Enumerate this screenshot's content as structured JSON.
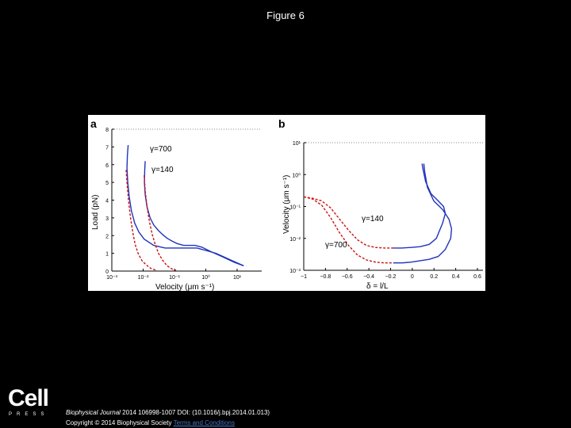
{
  "slide": {
    "title": "Figure 6"
  },
  "logo": {
    "word": "Cell",
    "sub": "PRESS"
  },
  "citation": {
    "journal": "Biophysical Journal",
    "details": " 2014 106998-1007 DOI: (10.1016/j.bpj.2014.01.013)",
    "copyright": "Copyright © 2014 Biophysical Society",
    "terms_link": "Terms and Conditions"
  },
  "colors": {
    "curve": "#2233bb",
    "dashed": "#cc1111",
    "axis": "#000000",
    "background": "#000000"
  },
  "chart_data": [
    {
      "panel_label": "a",
      "type": "line",
      "xscale": "log",
      "xlim": [
        0.001,
        100
      ],
      "ylim": [
        0,
        8
      ],
      "xlabel": "Velocity (μm s⁻¹)",
      "ylabel": "Load (pN)",
      "xticks": [
        "10⁻³",
        "10⁻²",
        "10⁻¹",
        "10⁰",
        "10¹"
      ],
      "yticks": [
        "0",
        "1",
        "2",
        "3",
        "4",
        "5",
        "6",
        "7",
        "8"
      ],
      "annotations": [
        "γ=700",
        "γ=140"
      ],
      "series": [
        {
          "style": "solid",
          "color": "#2233bb",
          "x": [
            0.0035,
            0.0033,
            0.0032,
            0.0034,
            0.0038,
            0.0045,
            0.0058,
            0.008,
            0.012,
            0.025,
            0.06,
            0.2,
            0.7,
            3,
            10,
            25
          ],
          "y": [
            7.1,
            6.5,
            5.8,
            5.0,
            4.2,
            3.4,
            2.7,
            2.2,
            1.8,
            1.45,
            1.3,
            1.3,
            1.3,
            1.0,
            0.6,
            0.3
          ]
        },
        {
          "style": "dashed",
          "color": "#cc1111",
          "x": [
            0.003,
            0.0032,
            0.0036,
            0.0042,
            0.005,
            0.006,
            0.0075,
            0.01,
            0.014,
            0.02,
            0.03
          ],
          "y": [
            5.7,
            5.0,
            4.0,
            3.0,
            2.2,
            1.5,
            1.0,
            0.6,
            0.35,
            0.15,
            0.05
          ]
        },
        {
          "style": "solid",
          "color": "#2233bb",
          "x": [
            0.013,
            0.0125,
            0.0122,
            0.013,
            0.015,
            0.019,
            0.025,
            0.035,
            0.05,
            0.07,
            0.1,
            0.15,
            0.25,
            0.4,
            0.6,
            1.0,
            2,
            5,
            12,
            25
          ],
          "y": [
            6.2,
            5.7,
            5.0,
            4.3,
            3.6,
            3.0,
            2.6,
            2.3,
            2.05,
            1.85,
            1.7,
            1.55,
            1.45,
            1.45,
            1.45,
            1.35,
            1.1,
            0.8,
            0.5,
            0.3
          ]
        },
        {
          "style": "dashed",
          "color": "#cc1111",
          "x": [
            0.012,
            0.013,
            0.015,
            0.018,
            0.022,
            0.028,
            0.036,
            0.05,
            0.07,
            0.1,
            0.14
          ],
          "y": [
            5.4,
            4.5,
            3.6,
            2.8,
            2.1,
            1.5,
            1.0,
            0.6,
            0.3,
            0.12,
            0.04
          ]
        }
      ]
    },
    {
      "panel_label": "b",
      "type": "line",
      "yscale": "log",
      "xlim": [
        -1,
        1
      ],
      "ylim": [
        0.001,
        10
      ],
      "xlabel": "δ = l/L",
      "ylabel": "Velocity (μm s⁻¹)",
      "xticks": [
        "−1",
        "−0.8",
        "−0.6",
        "−0.4",
        "−0.2",
        "0",
        "0.2",
        "0.4",
        "0.6"
      ],
      "yticks": [
        "10⁻³",
        "10⁻²",
        "10⁻¹",
        "10⁰",
        "10¹"
      ],
      "annotations": [
        "γ=140",
        "γ=700"
      ],
      "series": [
        {
          "style": "dashed",
          "color": "#cc1111",
          "x": [
            -1.0,
            -0.9,
            -0.8,
            -0.7,
            -0.6,
            -0.5,
            -0.4,
            -0.3,
            -0.2,
            -0.1,
            0.0
          ],
          "y": [
            0.2,
            0.18,
            0.15,
            0.09,
            0.04,
            0.018,
            0.009,
            0.006,
            0.0052,
            0.005,
            0.005
          ]
        },
        {
          "style": "solid",
          "color": "#2233bb",
          "x": [
            0.0,
            0.1,
            0.2,
            0.3,
            0.4,
            0.48,
            0.55,
            0.58,
            0.56,
            0.5,
            0.42,
            0.36,
            0.33,
            0.32
          ],
          "y": [
            0.005,
            0.005,
            0.0052,
            0.0055,
            0.0065,
            0.01,
            0.03,
            0.06,
            0.1,
            0.15,
            0.25,
            0.6,
            1.5,
            2.2
          ]
        },
        {
          "style": "dashed",
          "color": "#cc1111",
          "x": [
            -1.0,
            -0.9,
            -0.8,
            -0.7,
            -0.6,
            -0.5,
            -0.4,
            -0.3,
            -0.2,
            -0.1,
            0.0
          ],
          "y": [
            0.2,
            0.17,
            0.11,
            0.045,
            0.015,
            0.006,
            0.003,
            0.0021,
            0.0018,
            0.0017,
            0.0017
          ]
        },
        {
          "style": "solid",
          "color": "#2233bb",
          "x": [
            0.0,
            0.1,
            0.2,
            0.3,
            0.4,
            0.5,
            0.58,
            0.64,
            0.65,
            0.62,
            0.55,
            0.45,
            0.38,
            0.35,
            0.34
          ],
          "y": [
            0.0017,
            0.0017,
            0.0018,
            0.002,
            0.0022,
            0.0027,
            0.0045,
            0.01,
            0.02,
            0.04,
            0.08,
            0.15,
            0.4,
            1.2,
            2.2
          ]
        }
      ]
    }
  ]
}
